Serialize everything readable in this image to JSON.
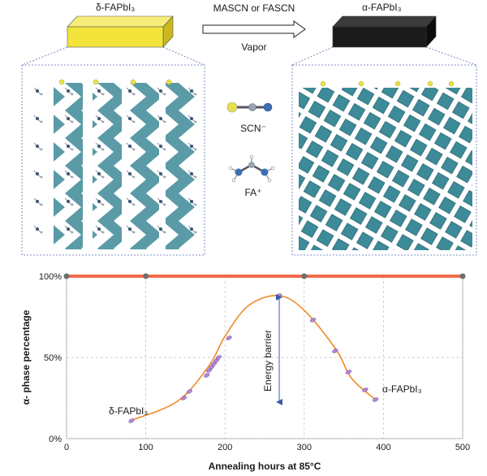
{
  "top": {
    "left_material": "δ-FAPbI₃",
    "right_material": "α-FAPbI₃",
    "arrow_top_label": "MASCN or FASCN",
    "arrow_bottom_label": "Vapor",
    "ion_scn": "SCN⁻",
    "ion_fa": "FA⁺",
    "colors": {
      "slab_left": "#f2e43a",
      "slab_right": "#1b1b1b",
      "octahedra": "#3d8a98",
      "iodide": "#c050c8",
      "sulfur": "#e8e14a"
    }
  },
  "chart_data": {
    "type": "line",
    "xlabel": "Annealing hours at 85°C",
    "ylabel": "α- phase percentage",
    "xlim": [
      0,
      500
    ],
    "ylim": [
      0,
      100
    ],
    "xticks": [
      "0",
      "100",
      "200",
      "300",
      "400",
      "500"
    ],
    "yticks": [
      "0%",
      "50%",
      "100%"
    ],
    "series": [
      {
        "name": "",
        "style": "line",
        "color": "#f26a4b",
        "x": [
          0,
          100,
          300,
          500
        ],
        "y": [
          100,
          100,
          100,
          100
        ]
      },
      {
        "name": "",
        "style": "curve",
        "color": "#f08a24",
        "x": [
          80,
          140,
          180,
          200,
          230,
          268,
          300,
          340,
          360,
          390
        ],
        "y": [
          11,
          23,
          45,
          63,
          82,
          88,
          79,
          55,
          37,
          24
        ]
      }
    ],
    "points": [
      {
        "x": 82,
        "y": 11
      },
      {
        "x": 148,
        "y": 25
      },
      {
        "x": 155,
        "y": 29
      },
      {
        "x": 177,
        "y": 39
      },
      {
        "x": 180,
        "y": 42
      },
      {
        "x": 183,
        "y": 44
      },
      {
        "x": 186,
        "y": 46
      },
      {
        "x": 189,
        "y": 48
      },
      {
        "x": 192,
        "y": 50
      },
      {
        "x": 205,
        "y": 62
      },
      {
        "x": 268,
        "y": 88
      },
      {
        "x": 311,
        "y": 73
      },
      {
        "x": 339,
        "y": 54
      },
      {
        "x": 356,
        "y": 41
      },
      {
        "x": 377,
        "y": 30
      },
      {
        "x": 390,
        "y": 24
      }
    ],
    "annotations": {
      "barrier": "Energy barrier",
      "left_label": "δ-FAPbI₃",
      "right_label": "α-FAPbI₃"
    }
  }
}
